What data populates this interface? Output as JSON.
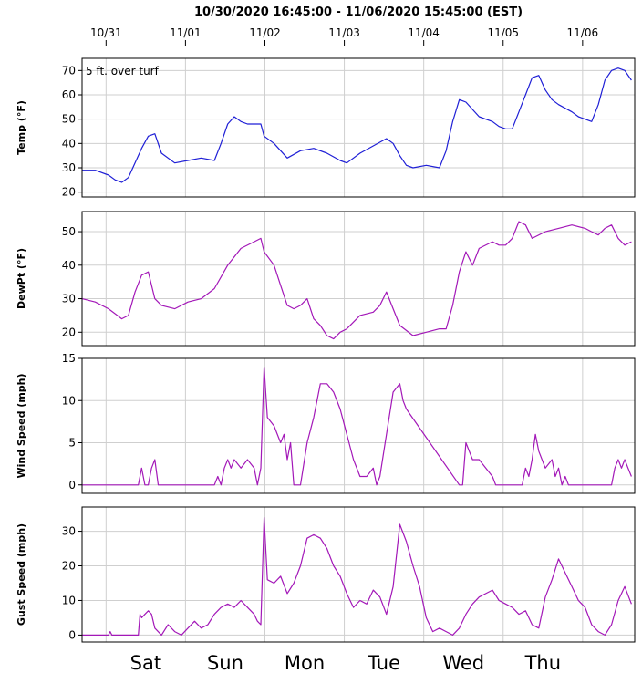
{
  "title": "10/30/2020 16:45:00  -  11/06/2020 15:45:00 (EST)",
  "colors": {
    "temp_line": "#1f1fd6",
    "other_lines": "#a318b8",
    "grid": "#cfcfcf",
    "frame": "#000000"
  },
  "chart_data": [
    {
      "type": "line",
      "ylabel": "Temp (°F)",
      "annotation": "5 ft. over turf",
      "color": "#1f1fd6",
      "xlim": [
        0,
        167
      ],
      "ylim": [
        18,
        75
      ],
      "yticks": [
        20,
        30,
        40,
        50,
        60,
        70
      ],
      "x_top_ticks": [
        {
          "x": 7.25,
          "label": "10/31"
        },
        {
          "x": 31.25,
          "label": "11/01"
        },
        {
          "x": 55.25,
          "label": "11/02"
        },
        {
          "x": 79.25,
          "label": "11/03"
        },
        {
          "x": 103.25,
          "label": "11/04"
        },
        {
          "x": 127.25,
          "label": "11/05"
        },
        {
          "x": 151.25,
          "label": "11/06"
        }
      ],
      "x": [
        0,
        4,
        8,
        10,
        12,
        14,
        18,
        20,
        22,
        24,
        28,
        32,
        36,
        40,
        42,
        44,
        46,
        48,
        50,
        54,
        55,
        58,
        62,
        66,
        70,
        74,
        78,
        80,
        84,
        88,
        92,
        94,
        96,
        98,
        100,
        104,
        108,
        110,
        112,
        114,
        116,
        120,
        124,
        126,
        128,
        130,
        132,
        134,
        136,
        138,
        140,
        142,
        144,
        148,
        150,
        152,
        154,
        156,
        158,
        160,
        162,
        164,
        166
      ],
      "y": [
        29,
        29,
        27,
        25,
        24,
        26,
        38,
        43,
        44,
        36,
        32,
        33,
        34,
        33,
        40,
        48,
        51,
        49,
        48,
        48,
        43,
        40,
        34,
        37,
        38,
        36,
        33,
        32,
        36,
        39,
        42,
        40,
        35,
        31,
        30,
        31,
        30,
        37,
        49,
        58,
        57,
        51,
        49,
        47,
        46,
        46,
        53,
        60,
        67,
        68,
        62,
        58,
        56,
        53,
        51,
        50,
        49,
        56,
        66,
        70,
        71,
        70,
        66
      ]
    },
    {
      "type": "line",
      "ylabel": "DewPt (°F)",
      "color": "#a318b8",
      "xlim": [
        0,
        167
      ],
      "ylim": [
        16,
        56
      ],
      "yticks": [
        20,
        30,
        40,
        50
      ],
      "x": [
        0,
        4,
        8,
        12,
        14,
        16,
        18,
        20,
        22,
        24,
        28,
        32,
        36,
        40,
        44,
        48,
        52,
        54,
        55,
        58,
        60,
        62,
        64,
        66,
        68,
        70,
        72,
        74,
        76,
        78,
        80,
        84,
        88,
        90,
        92,
        94,
        96,
        100,
        104,
        108,
        110,
        112,
        114,
        116,
        118,
        120,
        124,
        126,
        128,
        130,
        132,
        134,
        136,
        140,
        144,
        148,
        152,
        154,
        156,
        158,
        160,
        162,
        164,
        166
      ],
      "y": [
        30,
        29,
        27,
        24,
        25,
        32,
        37,
        38,
        30,
        28,
        27,
        29,
        30,
        33,
        40,
        45,
        47,
        48,
        44,
        40,
        34,
        28,
        27,
        28,
        30,
        24,
        22,
        19,
        18,
        20,
        21,
        25,
        26,
        28,
        32,
        27,
        22,
        19,
        20,
        21,
        21,
        28,
        38,
        44,
        40,
        45,
        47,
        46,
        46,
        48,
        53,
        52,
        48,
        50,
        51,
        52,
        51,
        50,
        49,
        51,
        52,
        48,
        46,
        47
      ]
    },
    {
      "type": "line",
      "ylabel": "Wind Speed (mph)",
      "color": "#a318b8",
      "xlim": [
        0,
        167
      ],
      "ylim": [
        -1,
        15
      ],
      "yticks": [
        0,
        5,
        10,
        15
      ],
      "x": [
        0,
        17,
        18,
        19,
        20,
        21,
        22,
        23,
        24,
        40,
        41,
        42,
        43,
        44,
        45,
        46,
        48,
        50,
        52,
        53,
        54,
        55,
        56,
        58,
        60,
        61,
        62,
        63,
        64,
        66,
        68,
        70,
        72,
        74,
        76,
        78,
        80,
        82,
        84,
        86,
        88,
        89,
        90,
        92,
        94,
        96,
        97,
        98,
        114,
        115,
        116,
        118,
        120,
        122,
        124,
        125,
        126,
        133,
        134,
        135,
        136,
        137,
        138,
        140,
        142,
        143,
        144,
        145,
        146,
        147,
        148,
        160,
        161,
        162,
        163,
        164,
        165,
        166
      ],
      "y": [
        0,
        0,
        2,
        0,
        0,
        2,
        3,
        0,
        0,
        0,
        1,
        0,
        2,
        3,
        2,
        3,
        2,
        3,
        2,
        0,
        2,
        14,
        8,
        7,
        5,
        6,
        3,
        5,
        0,
        0,
        5,
        8,
        12,
        12,
        11,
        9,
        6,
        3,
        1,
        1,
        2,
        0,
        1,
        6,
        11,
        12,
        10,
        9,
        0,
        0,
        5,
        3,
        3,
        2,
        1,
        0,
        0,
        0,
        2,
        1,
        3,
        6,
        4,
        2,
        3,
        1,
        2,
        0,
        1,
        0,
        0,
        0,
        2,
        3,
        2,
        3,
        2,
        1
      ]
    },
    {
      "type": "line",
      "ylabel": "Gust Speed (mph)",
      "color": "#a318b8",
      "xlim": [
        0,
        167
      ],
      "ylim": [
        -2,
        37
      ],
      "yticks": [
        0,
        10,
        20,
        30
      ],
      "x_bottom_labels": [
        {
          "x": 19.25,
          "label": "Sat"
        },
        {
          "x": 43.25,
          "label": "Sun"
        },
        {
          "x": 67.25,
          "label": "Mon"
        },
        {
          "x": 91.25,
          "label": "Tue"
        },
        {
          "x": 115.25,
          "label": "Wed"
        },
        {
          "x": 139.25,
          "label": "Thu"
        }
      ],
      "x": [
        0,
        8,
        8.5,
        9,
        17,
        17.5,
        18,
        19,
        20,
        21,
        22,
        24,
        26,
        28,
        30,
        32,
        34,
        36,
        38,
        40,
        42,
        44,
        46,
        48,
        50,
        52,
        53,
        54,
        55,
        56,
        58,
        60,
        62,
        64,
        66,
        68,
        70,
        72,
        74,
        76,
        78,
        80,
        82,
        84,
        86,
        88,
        90,
        92,
        94,
        96,
        98,
        100,
        102,
        104,
        106,
        108,
        110,
        112,
        114,
        116,
        118,
        120,
        122,
        124,
        126,
        128,
        130,
        132,
        134,
        136,
        138,
        140,
        142,
        144,
        146,
        148,
        150,
        152,
        154,
        156,
        158,
        160,
        162,
        164,
        166
      ],
      "y": [
        0,
        0,
        1,
        0,
        0,
        6,
        5,
        6,
        7,
        6,
        2,
        0,
        3,
        1,
        0,
        2,
        4,
        2,
        3,
        6,
        8,
        9,
        8,
        10,
        8,
        6,
        4,
        3,
        34,
        16,
        15,
        17,
        12,
        15,
        20,
        28,
        29,
        28,
        25,
        20,
        17,
        12,
        8,
        10,
        9,
        13,
        11,
        6,
        14,
        32,
        27,
        20,
        14,
        5,
        1,
        2,
        1,
        0,
        2,
        6,
        9,
        11,
        12,
        13,
        10,
        9,
        8,
        6,
        7,
        3,
        2,
        11,
        16,
        22,
        18,
        14,
        10,
        8,
        3,
        1,
        0,
        3,
        10,
        14,
        9
      ]
    }
  ]
}
